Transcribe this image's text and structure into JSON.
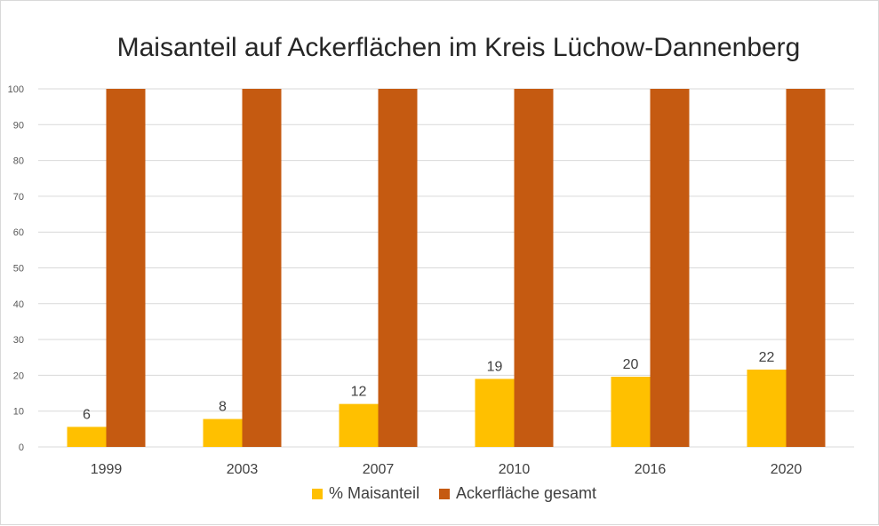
{
  "chart_data": {
    "type": "bar",
    "title": "Maisanteil auf Ackerflächen im Kreis Lüchow-Dannenberg",
    "categories": [
      "1999",
      "2003",
      "2007",
      "2010",
      "2016",
      "2020"
    ],
    "series": [
      {
        "name": "% Maisanteil",
        "values": [
          5.6,
          7.8,
          12,
          19,
          19.6,
          21.6
        ],
        "labels": [
          "6",
          "8",
          "12",
          "19",
          "20",
          "22"
        ],
        "color": "#FFC000"
      },
      {
        "name": "Ackerfläche gesamt",
        "values": [
          100,
          100,
          100,
          100,
          100,
          100
        ],
        "color": "#C55A11"
      }
    ],
    "xlabel": "",
    "ylabel": "",
    "ylim": [
      0,
      100
    ],
    "yticks": [
      "0",
      "10",
      "20",
      "30",
      "40",
      "50",
      "60",
      "70",
      "80",
      "90",
      "100"
    ],
    "grid": true,
    "legend": "bottom"
  }
}
